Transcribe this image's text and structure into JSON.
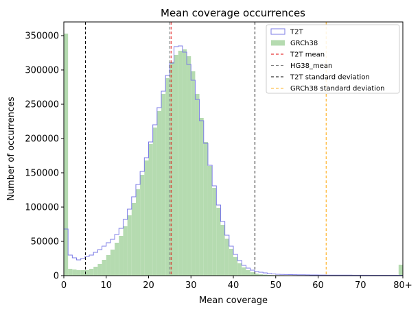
{
  "chart_data": {
    "type": "bar",
    "title": "Mean coverage occurrences",
    "xlabel": "Mean coverage",
    "ylabel": "Number of occurrences",
    "xlim": [
      0,
      80
    ],
    "ylim": [
      0,
      370000
    ],
    "x_ticks": [
      0,
      10,
      20,
      30,
      40,
      50,
      60,
      70,
      80
    ],
    "x_tick_labels": [
      "0",
      "10",
      "20",
      "30",
      "40",
      "50",
      "60",
      "70",
      "80+"
    ],
    "y_ticks": [
      0,
      50000,
      100000,
      150000,
      200000,
      250000,
      300000,
      350000
    ],
    "y_tick_labels": [
      "0",
      "50000",
      "100000",
      "150000",
      "200000",
      "250000",
      "300000",
      "350000"
    ],
    "bin_width": 1,
    "bin_starts": [
      0,
      1,
      2,
      3,
      4,
      5,
      6,
      7,
      8,
      9,
      10,
      11,
      12,
      13,
      14,
      15,
      16,
      17,
      18,
      19,
      20,
      21,
      22,
      23,
      24,
      25,
      26,
      27,
      28,
      29,
      30,
      31,
      32,
      33,
      34,
      35,
      36,
      37,
      38,
      39,
      40,
      41,
      42,
      43,
      44,
      45,
      46,
      47,
      48,
      49,
      50,
      51,
      52,
      53,
      54,
      55,
      56,
      57,
      58,
      59,
      60,
      61,
      62,
      63,
      64,
      65,
      66,
      67,
      68,
      69,
      70,
      71,
      72,
      73,
      74,
      75,
      76,
      77,
      78,
      79
    ],
    "series": [
      {
        "name": "T2T",
        "style": "step-outline",
        "color": "#7b7be6",
        "values": [
          68000,
          30000,
          26000,
          23000,
          25000,
          28000,
          30000,
          34000,
          38000,
          43000,
          48000,
          53000,
          60000,
          69000,
          82000,
          97000,
          115000,
          133000,
          152000,
          172000,
          195000,
          220000,
          245000,
          269000,
          292000,
          310000,
          334000,
          335000,
          326000,
          308000,
          285000,
          257000,
          226000,
          193000,
          161000,
          131000,
          103000,
          79000,
          59000,
          43000,
          31000,
          22000,
          15000,
          11000,
          8000,
          6000,
          5000,
          4000,
          3000,
          2500,
          2000,
          1800,
          1600,
          1500,
          1400,
          1300,
          1200,
          1100,
          1000,
          1000,
          900,
          900,
          800,
          800,
          800,
          700,
          700,
          700,
          600,
          600,
          600,
          600,
          500,
          500,
          500,
          500,
          500,
          500,
          500,
          500
        ]
      },
      {
        "name": "GRCh38",
        "style": "filled",
        "color": "#b5dbb0",
        "values": [
          353000,
          10000,
          9000,
          8000,
          8000,
          8000,
          10000,
          13000,
          17000,
          23000,
          30000,
          38000,
          48000,
          58000,
          72000,
          88000,
          106000,
          126000,
          147000,
          168000,
          192000,
          216000,
          240000,
          265000,
          288000,
          312000,
          322000,
          328000,
          330000,
          320000,
          298000,
          265000,
          230000,
          195000,
          160000,
          128000,
          99000,
          74000,
          54000,
          39000,
          27000,
          18000,
          12000,
          8000,
          5000,
          3000,
          2000,
          1500,
          1000,
          800,
          700,
          600,
          500,
          500,
          400,
          400,
          400,
          300,
          300,
          300,
          300,
          300,
          300,
          200,
          200,
          200,
          200,
          200,
          200,
          200,
          200,
          200,
          200,
          200,
          200,
          200,
          200,
          200,
          200,
          16000
        ]
      }
    ],
    "vlines": [
      {
        "name": "T2T mean",
        "x": 25.3,
        "color": "#e00000",
        "dash": "4,3"
      },
      {
        "name": "HG38_mean",
        "x": 24.9,
        "color": "#7f7f7f",
        "dash": "4,3"
      },
      {
        "name": "T2T standard deviation",
        "x": [
          5.1,
          45.1
        ],
        "color": "#000000",
        "dash": "4,3"
      },
      {
        "name": "GRCh38 standard deviation",
        "x": [
          61.9
        ],
        "color": "#ffa500",
        "dash": "4,3"
      }
    ],
    "legend_position": "top-right",
    "grid": false
  }
}
